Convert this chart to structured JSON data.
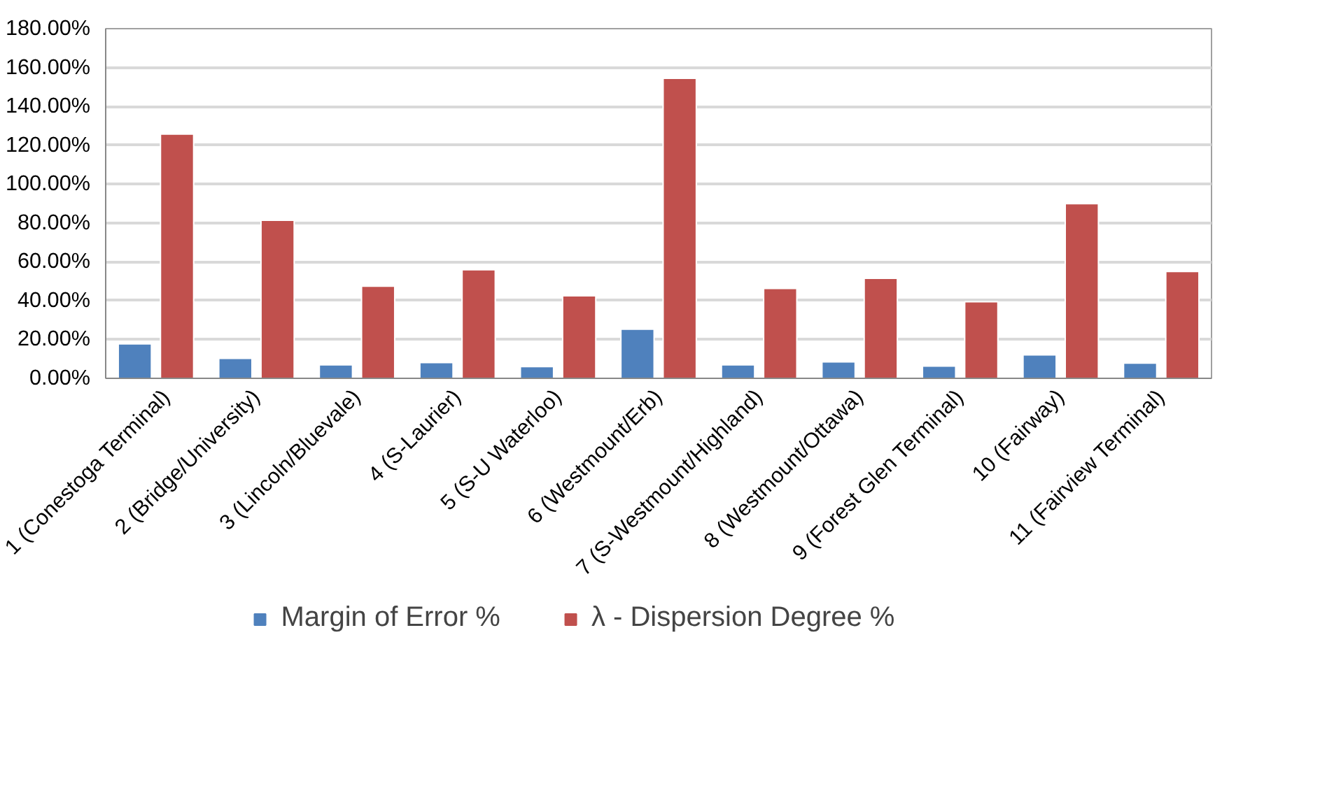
{
  "chart_data": {
    "type": "bar",
    "categories": [
      "1 (Conestoga Terminal)",
      "2 (Bridge/University)",
      "3 (Lincoln/Bluevale)",
      "4 (S-Laurier)",
      "5 (S-U Waterloo)",
      "6 (Westmount/Erb)",
      "7 (S-Westmount/Highland)",
      "8 (Westmount/Ottawa)",
      "9 (Forest Glen Terminal)",
      "10 (Fairway)",
      "11 (Fairview Terminal)"
    ],
    "series": [
      {
        "name": "Margin of Error %",
        "color": "#4f81bd",
        "values": [
          17.7,
          10.3,
          6.9,
          8.1,
          6.0,
          25.3,
          6.9,
          8.5,
          6.3,
          12.1,
          7.8
        ]
      },
      {
        "name": "λ - Dispersion Degree %",
        "color": "#c0504d",
        "values": [
          125.7,
          81.4,
          47.4,
          55.9,
          42.5,
          154.4,
          46.3,
          51.5,
          39.4,
          89.9,
          55.0
        ]
      }
    ],
    "ylim": [
      0,
      180
    ],
    "yticks": [
      {
        "value": 0,
        "label": "0.00%"
      },
      {
        "value": 20,
        "label": "20.00%"
      },
      {
        "value": 40,
        "label": "40.00%"
      },
      {
        "value": 60,
        "label": "60.00%"
      },
      {
        "value": 80,
        "label": "80.00%"
      },
      {
        "value": 100,
        "label": "100.00%"
      },
      {
        "value": 120,
        "label": "120.00%"
      },
      {
        "value": 140,
        "label": "140.00%"
      },
      {
        "value": 160,
        "label": "160.00%"
      },
      {
        "value": 180,
        "label": "180.00%"
      }
    ],
    "grid": "y",
    "legend": "bottom"
  }
}
